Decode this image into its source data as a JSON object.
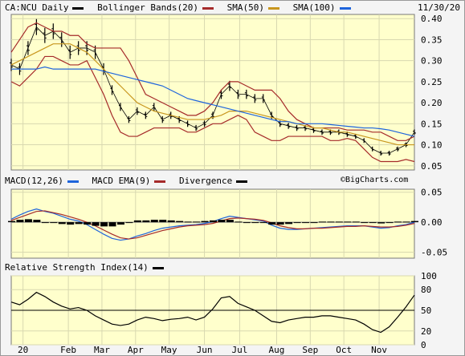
{
  "header": {
    "symbol_label": "CA:NCU Daily",
    "date": "11/30/20",
    "legend": [
      {
        "label": "Bollinger Bands(20)",
        "color": "#a52a2a"
      },
      {
        "label": "SMA(50)",
        "color": "#c8961e"
      },
      {
        "label": "SMA(100)",
        "color": "#1e64dc"
      }
    ]
  },
  "macd_legend": [
    {
      "label": "MACD(12,26)",
      "color": "#1e64dc"
    },
    {
      "label": "MACD EMA(9)",
      "color": "#a52a2a"
    },
    {
      "label": "Divergence",
      "color": "#000000"
    }
  ],
  "watermark": "©BigCharts.com",
  "rsi_legend": {
    "label": "Relative Strength Index(14)",
    "color": "#000000"
  },
  "chart_data": [
    {
      "type": "line",
      "panel": "price",
      "title": "CA:NCU Daily",
      "x_months": [
        "20",
        "Feb",
        "Mar",
        "Apr",
        "May",
        "Jun",
        "Jul",
        "Aug",
        "Sep",
        "Oct",
        "Nov"
      ],
      "x": [
        0,
        5,
        10,
        15,
        20,
        25,
        30,
        35,
        40,
        45,
        50,
        55,
        60,
        65,
        70,
        75,
        80,
        85,
        90,
        95,
        100,
        105,
        110,
        115,
        120,
        125,
        130,
        135,
        140,
        145,
        150,
        155,
        160,
        165,
        170,
        175,
        180,
        185,
        190,
        195,
        200,
        205,
        210,
        215,
        220,
        225,
        230,
        235,
        240
      ],
      "month_ticks": [
        {
          "label": "20",
          "x": 7
        },
        {
          "label": "Feb",
          "x": 34
        },
        {
          "label": "Mar",
          "x": 54
        },
        {
          "label": "Apr",
          "x": 74
        },
        {
          "label": "May",
          "x": 94
        },
        {
          "label": "Jun",
          "x": 115
        },
        {
          "label": "Jul",
          "x": 136
        },
        {
          "label": "Aug",
          "x": 158
        },
        {
          "label": "Sep",
          "x": 178
        },
        {
          "label": "Oct",
          "x": 198
        },
        {
          "label": "Nov",
          "x": 219
        }
      ],
      "ylim": [
        0.04,
        0.41
      ],
      "yticks": [
        0.05,
        0.1,
        0.15,
        0.2,
        0.25,
        0.3,
        0.35,
        0.4
      ],
      "series": [
        {
          "name": "CA:NCU Daily",
          "style": "ohlc",
          "color": "#000000",
          "values": [
            0.29,
            0.28,
            0.33,
            0.38,
            0.36,
            0.37,
            0.35,
            0.32,
            0.33,
            0.33,
            0.32,
            0.28,
            0.23,
            0.19,
            0.16,
            0.18,
            0.17,
            0.19,
            0.16,
            0.17,
            0.16,
            0.15,
            0.14,
            0.15,
            0.17,
            0.22,
            0.24,
            0.22,
            0.22,
            0.21,
            0.21,
            0.17,
            0.15,
            0.145,
            0.14,
            0.14,
            0.135,
            0.13,
            0.13,
            0.13,
            0.125,
            0.12,
            0.11,
            0.09,
            0.08,
            0.08,
            0.09,
            0.1,
            0.13
          ]
        },
        {
          "name": "Bollinger Bands(20) upper",
          "color": "#a52a2a",
          "values": [
            0.32,
            0.35,
            0.38,
            0.39,
            0.38,
            0.37,
            0.37,
            0.36,
            0.36,
            0.34,
            0.33,
            0.33,
            0.33,
            0.33,
            0.3,
            0.26,
            0.22,
            0.21,
            0.2,
            0.19,
            0.18,
            0.17,
            0.17,
            0.18,
            0.2,
            0.23,
            0.25,
            0.25,
            0.24,
            0.23,
            0.23,
            0.23,
            0.21,
            0.18,
            0.16,
            0.15,
            0.14,
            0.14,
            0.14,
            0.14,
            0.135,
            0.135,
            0.135,
            0.13,
            0.13,
            0.12,
            0.11,
            0.11,
            0.12
          ]
        },
        {
          "name": "Bollinger Bands(20) lower",
          "color": "#a52a2a",
          "values": [
            0.25,
            0.24,
            0.26,
            0.28,
            0.31,
            0.31,
            0.3,
            0.29,
            0.29,
            0.3,
            0.26,
            0.22,
            0.17,
            0.13,
            0.12,
            0.12,
            0.13,
            0.14,
            0.14,
            0.14,
            0.14,
            0.13,
            0.13,
            0.14,
            0.15,
            0.15,
            0.16,
            0.17,
            0.16,
            0.13,
            0.12,
            0.11,
            0.11,
            0.12,
            0.12,
            0.12,
            0.12,
            0.12,
            0.11,
            0.11,
            0.115,
            0.11,
            0.09,
            0.07,
            0.06,
            0.06,
            0.06,
            0.065,
            0.06
          ]
        },
        {
          "name": "SMA(50)",
          "color": "#c8961e",
          "values": [
            0.29,
            0.3,
            0.31,
            0.32,
            0.33,
            0.34,
            0.34,
            0.34,
            0.33,
            0.32,
            0.3,
            0.28,
            0.26,
            0.24,
            0.22,
            0.2,
            0.19,
            0.18,
            0.175,
            0.17,
            0.165,
            0.16,
            0.16,
            0.16,
            0.165,
            0.17,
            0.18,
            0.18,
            0.18,
            0.175,
            0.17,
            0.165,
            0.16,
            0.155,
            0.15,
            0.145,
            0.14,
            0.14,
            0.135,
            0.13,
            0.13,
            0.125,
            0.12,
            0.115,
            0.11,
            0.105,
            0.1,
            0.1,
            0.1
          ]
        },
        {
          "name": "SMA(100)",
          "color": "#1e64dc",
          "values": [
            0.28,
            0.28,
            0.28,
            0.28,
            0.285,
            0.28,
            0.28,
            0.28,
            0.28,
            0.28,
            0.28,
            0.275,
            0.27,
            0.265,
            0.26,
            0.255,
            0.25,
            0.245,
            0.24,
            0.23,
            0.22,
            0.21,
            0.205,
            0.2,
            0.195,
            0.19,
            0.185,
            0.18,
            0.175,
            0.17,
            0.165,
            0.16,
            0.155,
            0.155,
            0.15,
            0.15,
            0.15,
            0.15,
            0.148,
            0.146,
            0.144,
            0.142,
            0.14,
            0.14,
            0.138,
            0.135,
            0.13,
            0.125,
            0.12
          ]
        }
      ]
    },
    {
      "type": "line",
      "panel": "macd",
      "title": "MACD(12,26)",
      "ylim": [
        -0.06,
        0.055
      ],
      "yticks": [
        0.05,
        0.0,
        -0.05
      ],
      "ytick_labels": [
        "0.05",
        "0.00",
        "-0.05"
      ],
      "series": [
        {
          "name": "MACD(12,26)",
          "color": "#1e64dc",
          "values": [
            0.005,
            0.012,
            0.018,
            0.022,
            0.018,
            0.015,
            0.01,
            0.005,
            0.002,
            -0.004,
            -0.012,
            -0.02,
            -0.027,
            -0.03,
            -0.028,
            -0.023,
            -0.019,
            -0.014,
            -0.01,
            -0.008,
            -0.006,
            -0.005,
            -0.004,
            -0.002,
            0.001,
            0.006,
            0.01,
            0.008,
            0.006,
            0.004,
            0.002,
            -0.005,
            -0.01,
            -0.012,
            -0.012,
            -0.011,
            -0.01,
            -0.009,
            -0.008,
            -0.007,
            -0.006,
            -0.006,
            -0.006,
            -0.008,
            -0.01,
            -0.009,
            -0.006,
            -0.004,
            0.0
          ]
        },
        {
          "name": "MACD EMA(9)",
          "color": "#a52a2a",
          "values": [
            0.003,
            0.008,
            0.013,
            0.018,
            0.019,
            0.016,
            0.013,
            0.009,
            0.005,
            0.0,
            -0.006,
            -0.013,
            -0.02,
            -0.026,
            -0.028,
            -0.026,
            -0.022,
            -0.018,
            -0.014,
            -0.011,
            -0.008,
            -0.006,
            -0.005,
            -0.004,
            -0.002,
            0.002,
            0.006,
            0.007,
            0.006,
            0.005,
            0.003,
            -0.001,
            -0.006,
            -0.009,
            -0.011,
            -0.011,
            -0.01,
            -0.01,
            -0.009,
            -0.008,
            -0.007,
            -0.007,
            -0.006,
            -0.007,
            -0.008,
            -0.008,
            -0.007,
            -0.005,
            -0.002
          ]
        },
        {
          "name": "Divergence",
          "style": "histogram",
          "color": "#000000",
          "values": [
            0.002,
            0.004,
            0.005,
            0.004,
            -0.001,
            -0.001,
            -0.003,
            -0.004,
            -0.003,
            -0.004,
            -0.006,
            -0.007,
            -0.007,
            -0.004,
            0.0,
            0.003,
            0.003,
            0.004,
            0.004,
            0.003,
            0.002,
            0.001,
            0.001,
            0.002,
            0.003,
            0.004,
            0.004,
            0.001,
            0.0,
            -0.001,
            -0.001,
            -0.004,
            -0.004,
            -0.003,
            -0.001,
            0.0,
            0.0,
            0.001,
            0.001,
            0.001,
            0.001,
            0.001,
            0.0,
            -0.001,
            -0.002,
            -0.001,
            0.001,
            0.001,
            0.002
          ]
        }
      ]
    },
    {
      "type": "line",
      "panel": "rsi",
      "title": "Relative Strength Index(14)",
      "ylim": [
        0,
        100
      ],
      "yticks": [
        100,
        80,
        50,
        20,
        0
      ],
      "reference_line": 50,
      "series": [
        {
          "name": "Relative Strength Index(14)",
          "color": "#000000",
          "values": [
            62,
            58,
            66,
            76,
            70,
            62,
            56,
            52,
            54,
            50,
            42,
            36,
            30,
            28,
            30,
            36,
            40,
            38,
            35,
            37,
            38,
            40,
            36,
            40,
            52,
            68,
            70,
            60,
            55,
            50,
            42,
            34,
            32,
            36,
            38,
            40,
            40,
            42,
            42,
            40,
            38,
            36,
            30,
            22,
            18,
            26,
            40,
            55,
            72
          ]
        }
      ]
    }
  ]
}
